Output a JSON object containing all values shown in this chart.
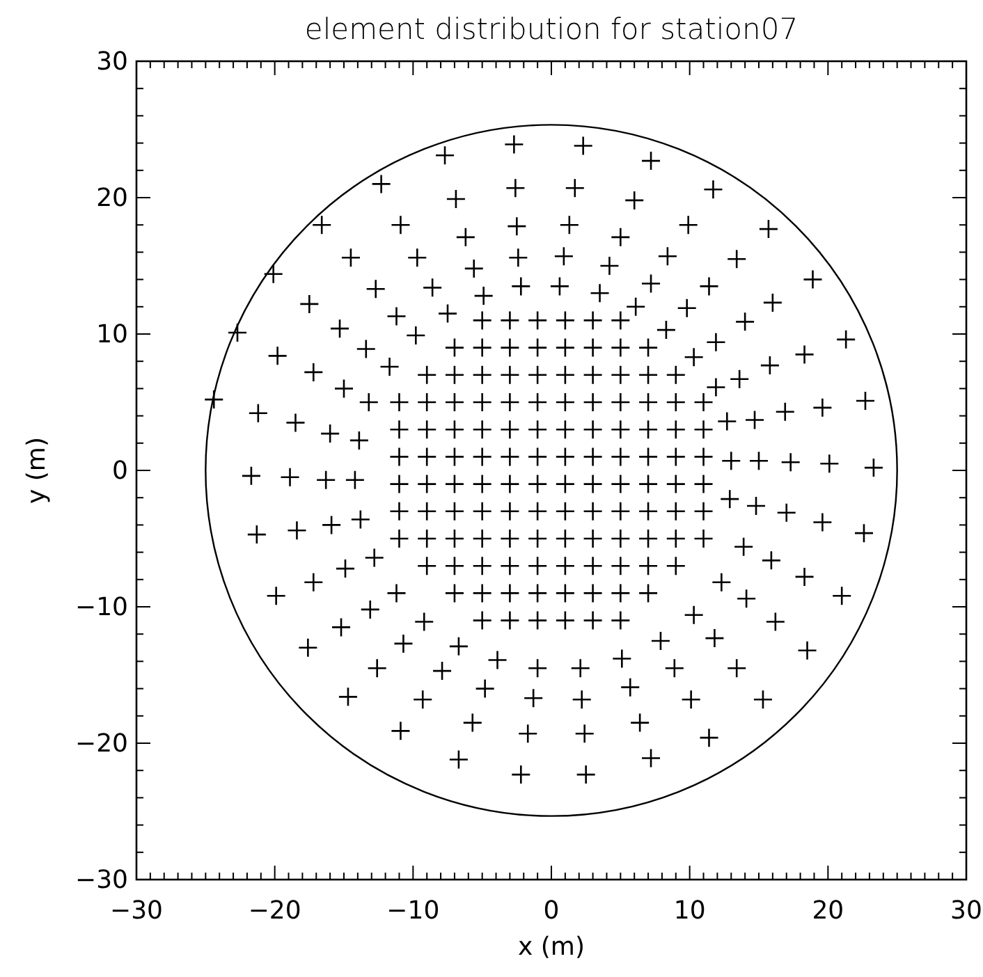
{
  "chart_data": {
    "type": "scatter",
    "title": "element distribution for station07",
    "xlabel": "x (m)",
    "ylabel": "y (m)",
    "xlim": [
      -30,
      30
    ],
    "ylim": [
      -30,
      30
    ],
    "xticks": [
      -30,
      {
        "value": -29,
        "label": null
      },
      {
        "value": -28,
        "label": null
      },
      {
        "value": -27,
        "label": null
      },
      {
        "value": -26,
        "label": null
      },
      {
        "value": -25,
        "label": null
      },
      {
        "value": -24,
        "label": null
      },
      {
        "value": -23,
        "label": null
      },
      {
        "value": -22,
        "label": null
      },
      {
        "value": -21,
        "label": null
      },
      -20,
      {
        "value": -19,
        "label": null
      },
      {
        "value": -18,
        "label": null
      },
      {
        "value": -17,
        "label": null
      },
      {
        "value": -16,
        "label": null
      },
      {
        "value": -15,
        "label": null
      },
      {
        "value": -14,
        "label": null
      },
      {
        "value": -13,
        "label": null
      },
      {
        "value": -12,
        "label": null
      },
      {
        "value": -11,
        "label": null
      },
      -10,
      {
        "value": -9,
        "label": null
      },
      {
        "value": -8,
        "label": null
      },
      {
        "value": -7,
        "label": null
      },
      {
        "value": -6,
        "label": null
      },
      {
        "value": -5,
        "label": null
      },
      {
        "value": -4,
        "label": null
      },
      {
        "value": -3,
        "label": null
      },
      {
        "value": -2,
        "label": null
      },
      {
        "value": -1,
        "label": null
      },
      0,
      {
        "value": 1,
        "label": null
      },
      {
        "value": 2,
        "label": null
      },
      {
        "value": 3,
        "label": null
      },
      {
        "value": 4,
        "label": null
      },
      {
        "value": 5,
        "label": null
      },
      {
        "value": 6,
        "label": null
      },
      {
        "value": 7,
        "label": null
      },
      {
        "value": 8,
        "label": null
      },
      {
        "value": 9,
        "label": null
      },
      10,
      {
        "value": 11,
        "label": null
      },
      {
        "value": 12,
        "label": null
      },
      {
        "value": 13,
        "label": null
      },
      {
        "value": 14,
        "label": null
      },
      {
        "value": 15,
        "label": null
      },
      {
        "value": 16,
        "label": null
      },
      {
        "value": 17,
        "label": null
      },
      {
        "value": 18,
        "label": null
      },
      {
        "value": 19,
        "label": null
      },
      20,
      {
        "value": 21,
        "label": null
      },
      {
        "value": 22,
        "label": null
      },
      {
        "value": 23,
        "label": null
      },
      {
        "value": 24,
        "label": null
      },
      {
        "value": 25,
        "label": null
      },
      {
        "value": 26,
        "label": null
      },
      {
        "value": 27,
        "label": null
      },
      {
        "value": 28,
        "label": null
      },
      {
        "value": 29,
        "label": null
      },
      30
    ],
    "yticks": [
      -30,
      {
        "value": -28,
        "label": null
      },
      {
        "value": -26,
        "label": null
      },
      {
        "value": -24,
        "label": null
      },
      {
        "value": -22,
        "label": null
      },
      -20,
      {
        "value": -18,
        "label": null
      },
      {
        "value": -16,
        "label": null
      },
      {
        "value": -14,
        "label": null
      },
      {
        "value": -12,
        "label": null
      },
      -10,
      {
        "value": -8,
        "label": null
      },
      {
        "value": -6,
        "label": null
      },
      {
        "value": -4,
        "label": null
      },
      {
        "value": -2,
        "label": null
      },
      0,
      {
        "value": 2,
        "label": null
      },
      {
        "value": 4,
        "label": null
      },
      {
        "value": 6,
        "label": null
      },
      {
        "value": 8,
        "label": null
      },
      10,
      {
        "value": 12,
        "label": null
      },
      {
        "value": 14,
        "label": null
      },
      {
        "value": 16,
        "label": null
      },
      {
        "value": 18,
        "label": null
      },
      20,
      {
        "value": 22,
        "label": null
      },
      {
        "value": 24,
        "label": null
      },
      {
        "value": 26,
        "label": null
      },
      {
        "value": 28,
        "label": null
      },
      30
    ],
    "series": [
      {
        "type": "scatter",
        "color": "#000000",
        "marker": "cross",
        "x": [
          -5,
          -3,
          -1,
          1,
          3,
          5,
          -7,
          -5,
          -3,
          -1,
          1,
          3,
          5,
          7,
          -9,
          -7,
          -5,
          -3,
          -1,
          1,
          3,
          5,
          7,
          9,
          -11,
          -9,
          -7,
          -5,
          -3,
          -1,
          1,
          3,
          5,
          7,
          9,
          11,
          -11,
          -9,
          -7,
          -5,
          -3,
          -1,
          1,
          3,
          5,
          7,
          9,
          11,
          -11,
          -9,
          -7,
          -5,
          -3,
          -1,
          1,
          3,
          5,
          7,
          9,
          11,
          -11,
          -9,
          -7,
          -5,
          -3,
          -1,
          1,
          3,
          5,
          7,
          9,
          11,
          -11,
          -9,
          -7,
          -5,
          -3,
          -1,
          1,
          3,
          5,
          7,
          9,
          11,
          -11,
          -9,
          -7,
          -5,
          -3,
          -1,
          1,
          3,
          5,
          7,
          9,
          11,
          -9,
          -7,
          -5,
          -3,
          -1,
          1,
          3,
          5,
          7,
          9,
          -7,
          -5,
          -3,
          -1,
          1,
          3,
          5,
          7,
          -5,
          -3,
          -1,
          1,
          3,
          5,
          -2.7,
          -7.7,
          -12.3,
          -16.6,
          -20.1,
          -22.7,
          -24.4,
          -2.6,
          -6.9,
          -10.9,
          -14.5,
          -17.5,
          -19.8,
          -21.2,
          -2.5,
          -6.2,
          -9.7,
          -12.7,
          -15.3,
          -17.2,
          -18.5,
          -2.4,
          -5.6,
          -8.6,
          -11.2,
          -13.4,
          -15.0,
          -16.0,
          -2.2,
          -4.9,
          -7.5,
          -9.8,
          -11.7,
          -13.2,
          -13.9,
          -21.7,
          -18.9,
          -16.3,
          -14.2,
          2.3,
          7.2,
          11.7,
          15.7,
          18.9,
          21.3,
          22.7,
          23.3,
          1.7,
          6.0,
          9.9,
          13.4,
          16.0,
          18.3,
          19.6,
          20.1,
          1.3,
          5.0,
          8.4,
          11.4,
          14.0,
          15.8,
          16.9,
          17.3,
          0.9,
          4.2,
          7.2,
          9.8,
          11.9,
          13.6,
          14.7,
          15.0,
          0.6,
          3.5,
          6.1,
          8.3,
          10.3,
          11.9,
          12.7,
          13.0,
          -21.3,
          -18.4,
          -15.9,
          -13.8,
          -12.8,
          -14.9,
          -17.2,
          -19.9,
          -11.2,
          -13.1,
          -15.2,
          -17.6,
          -9.2,
          -10.7,
          -12.6,
          -14.7,
          -6.7,
          -7.9,
          -9.3,
          -10.9,
          -3.9,
          -4.8,
          -5.7,
          -6.7,
          -1.0,
          -1.3,
          -1.7,
          -2.2,
          12.9,
          14.8,
          17.0,
          19.6,
          22.6,
          13.9,
          15.9,
          18.3,
          21.0,
          12.3,
          14.1,
          16.2,
          18.5,
          10.3,
          11.8,
          13.4,
          15.3,
          7.9,
          8.9,
          10.1,
          11.4,
          5.1,
          5.7,
          6.4,
          7.2,
          2.1,
          2.2,
          2.4,
          2.5
        ],
        "values": [
          11,
          11,
          11,
          11,
          11,
          11,
          9,
          9,
          9,
          9,
          9,
          9,
          9,
          9,
          7,
          7,
          7,
          7,
          7,
          7,
          7,
          7,
          7,
          7,
          5,
          5,
          5,
          5,
          5,
          5,
          5,
          5,
          5,
          5,
          5,
          5,
          3,
          3,
          3,
          3,
          3,
          3,
          3,
          3,
          3,
          3,
          3,
          3,
          1,
          1,
          1,
          1,
          1,
          1,
          1,
          1,
          1,
          1,
          1,
          1,
          -1,
          -1,
          -1,
          -1,
          -1,
          -1,
          -1,
          -1,
          -1,
          -1,
          -1,
          -1,
          -3,
          -3,
          -3,
          -3,
          -3,
          -3,
          -3,
          -3,
          -3,
          -3,
          -3,
          -3,
          -5,
          -5,
          -5,
          -5,
          -5,
          -5,
          -5,
          -5,
          -5,
          -5,
          -5,
          -5,
          -7,
          -7,
          -7,
          -7,
          -7,
          -7,
          -7,
          -7,
          -7,
          -7,
          -9,
          -9,
          -9,
          -9,
          -9,
          -9,
          -9,
          -9,
          -11,
          -11,
          -11,
          -11,
          -11,
          -11,
          23.9,
          23.1,
          21.0,
          18.0,
          14.4,
          10.1,
          5.2,
          20.7,
          19.9,
          18.0,
          15.6,
          12.2,
          8.4,
          4.2,
          17.9,
          17.1,
          15.6,
          13.3,
          10.4,
          7.2,
          3.5,
          15.6,
          14.8,
          13.4,
          11.3,
          8.9,
          6.0,
          2.7,
          13.5,
          12.8,
          11.5,
          9.9,
          7.6,
          5.0,
          2.2,
          -0.4,
          -0.5,
          -0.7,
          -0.7,
          23.8,
          22.7,
          20.6,
          17.7,
          14.0,
          9.6,
          5.1,
          0.2,
          20.7,
          19.8,
          18.0,
          15.5,
          12.3,
          8.5,
          4.6,
          0.5,
          18.0,
          17.1,
          15.7,
          13.5,
          10.9,
          7.7,
          4.3,
          0.6,
          15.7,
          15.0,
          13.7,
          11.9,
          9.4,
          6.7,
          3.7,
          0.7,
          13.5,
          13.0,
          12.0,
          10.3,
          8.3,
          6.1,
          3.6,
          0.7,
          -4.7,
          -4.4,
          -4.0,
          -3.6,
          -6.4,
          -7.2,
          -8.2,
          -9.2,
          -9.0,
          -10.2,
          -11.5,
          -13.0,
          -11.1,
          -12.7,
          -14.5,
          -16.6,
          -12.9,
          -14.7,
          -16.8,
          -19.1,
          -13.9,
          -16.0,
          -18.5,
          -21.2,
          -14.5,
          -16.7,
          -19.3,
          -22.3,
          -2.1,
          -2.6,
          -3.1,
          -3.8,
          -4.6,
          -5.6,
          -6.6,
          -7.8,
          -9.2,
          -8.2,
          -9.4,
          -11.1,
          -13.2,
          -10.6,
          -12.3,
          -14.5,
          -16.8,
          -12.5,
          -14.5,
          -16.8,
          -19.6,
          -13.8,
          -15.9,
          -18.5,
          -21.1,
          -14.5,
          -16.8,
          -19.3,
          -22.3
        ]
      }
    ]
  }
}
